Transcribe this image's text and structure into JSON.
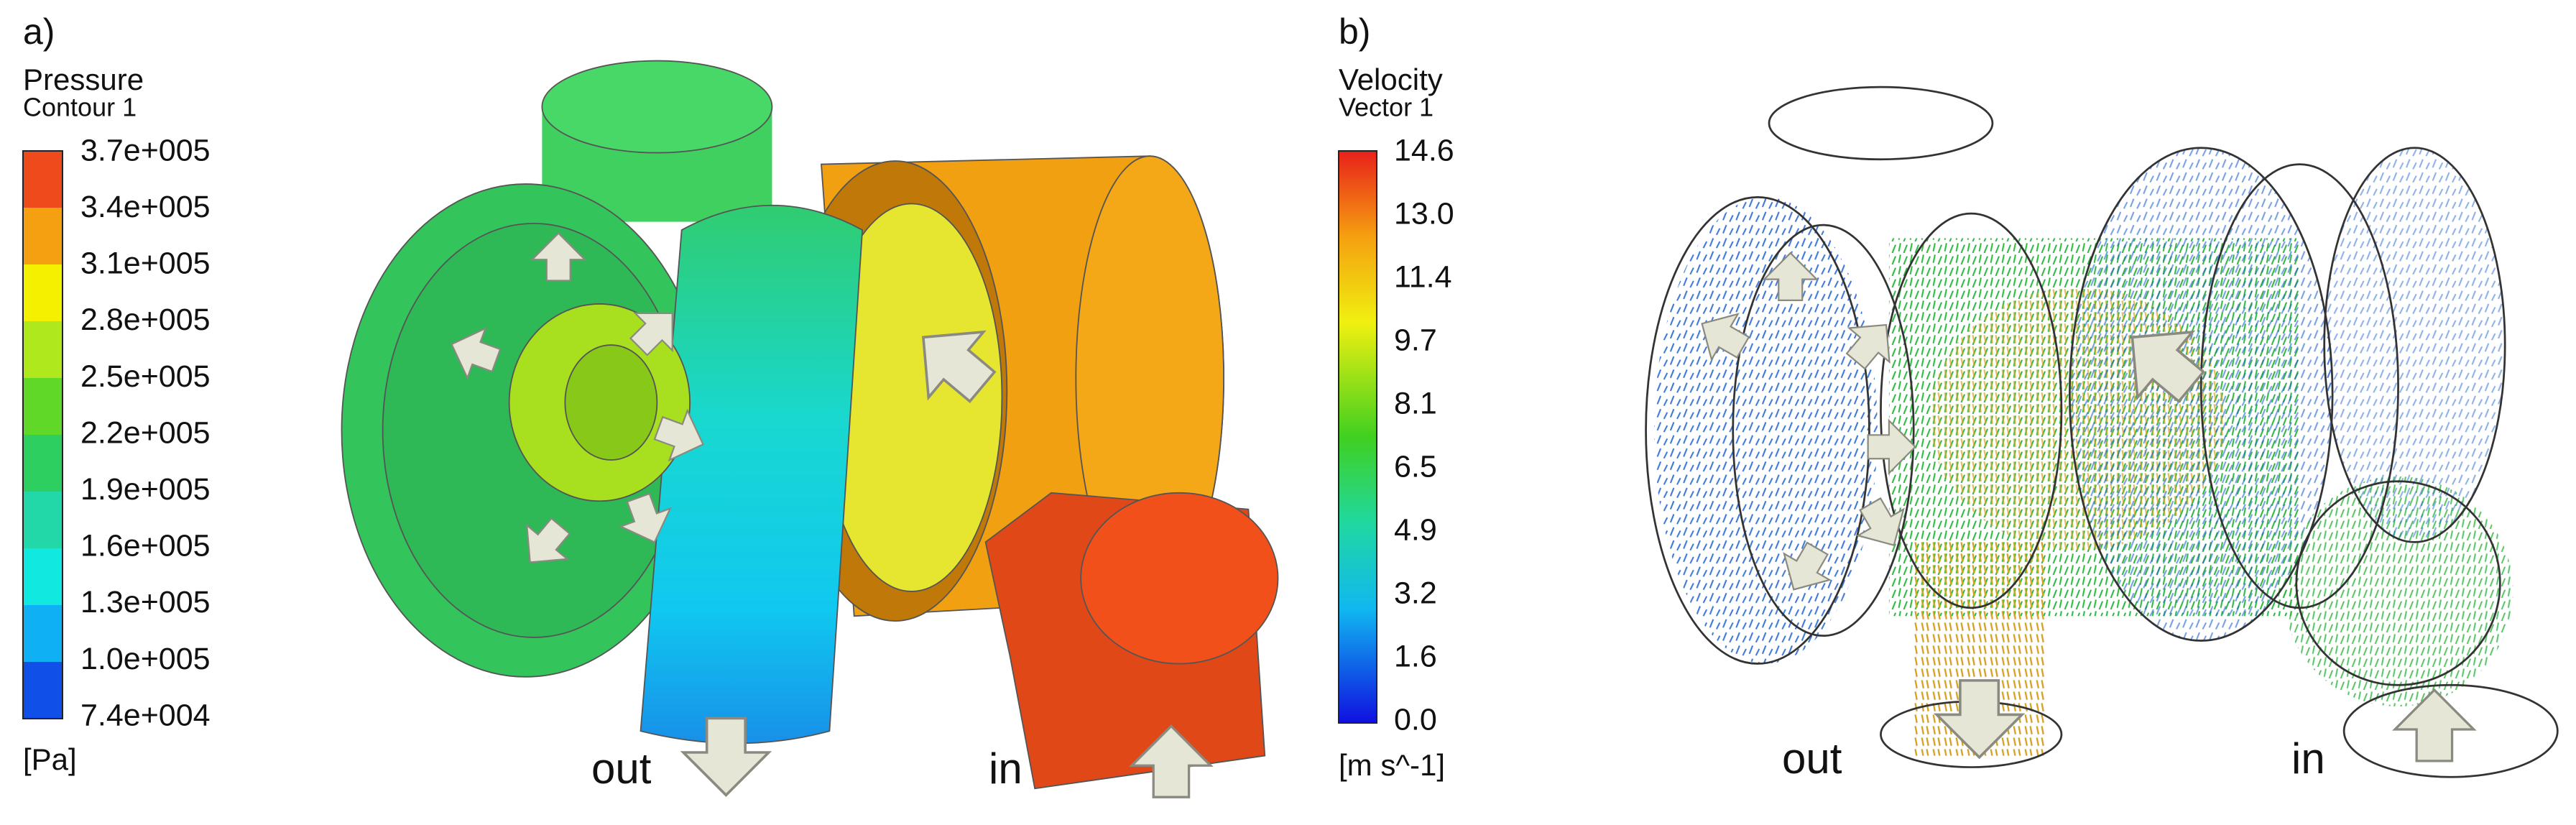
{
  "panel_a": {
    "label": "a)",
    "title": "Pressure",
    "subtitle": "Contour 1",
    "ticks": [
      "3.7e+005",
      "3.4e+005",
      "3.1e+005",
      "2.8e+005",
      "2.5e+005",
      "2.2e+005",
      "1.9e+005",
      "1.6e+005",
      "1.3e+005",
      "1.0e+005",
      "7.4e+004"
    ],
    "unit": "[Pa]",
    "outlet_label": "out",
    "inlet_label": "in"
  },
  "panel_b": {
    "label": "b)",
    "title": "Velocity",
    "subtitle": "Vector 1",
    "ticks": [
      "14.6",
      "13.0",
      "11.4",
      "9.7",
      "8.1",
      "6.5",
      "4.9",
      "3.2",
      "1.6",
      "0.0"
    ],
    "unit": "[m s^-1]",
    "outlet_label": "out",
    "inlet_label": "in"
  }
}
